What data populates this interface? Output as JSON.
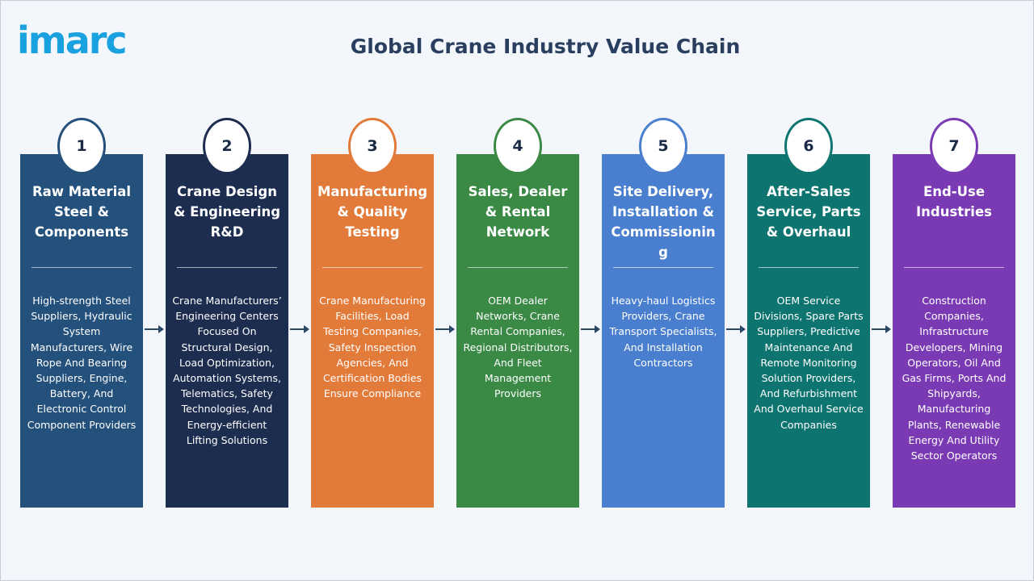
{
  "logo": "imarc",
  "title": "Global Crane Industry Value Chain",
  "stages": [
    {
      "number": "1",
      "color": "#24507c",
      "title": "Raw Material Steel & Components",
      "description": "High-strength Steel Suppliers, Hydraulic System Manufacturers, Wire Rope And Bearing Suppliers, Engine, Battery, And Electronic Control Component Providers"
    },
    {
      "number": "2",
      "color": "#1c2d50",
      "title": "Crane Design & Engineering R&D",
      "description": "Crane Manufacturers’ Engineering Centers Focused On Structural Design, Load Optimization, Automation Systems, Telematics, Safety Technologies, And Energy-efficient Lifting Solutions"
    },
    {
      "number": "3",
      "color": "#e27b3a",
      "title": "Manufacturing & Quality Testing",
      "description": "Crane Manufacturing Facilities, Load Testing Companies, Safety Inspection Agencies, And Certification Bodies Ensure Compliance"
    },
    {
      "number": "4",
      "color": "#3a8a46",
      "title": "Sales, Dealer & Rental Network",
      "description": "OEM Dealer Networks, Crane Rental Companies, Regional Distributors, And Fleet Management Providers"
    },
    {
      "number": "5",
      "color": "#4a7fcf",
      "title": "Site Delivery, Installation & Commissioning",
      "description": "Heavy-haul Logistics Providers, Crane Transport Specialists, And Installation Contractors"
    },
    {
      "number": "6",
      "color": "#0e7470",
      "title": "After-Sales Service, Parts & Overhaul",
      "description": "OEM Service Divisions, Spare Parts Suppliers, Predictive Maintenance And Remote Monitoring Solution Providers, And Refurbishment And Overhaul Service Companies"
    },
    {
      "number": "7",
      "color": "#7a3ab4",
      "title": "End-Use Industries",
      "description": "Construction Companies, Infrastructure Developers, Mining Operators, Oil And Gas Firms, Ports And Shipyards, Manufacturing Plants, Renewable Energy And Utility Sector Operators"
    }
  ]
}
